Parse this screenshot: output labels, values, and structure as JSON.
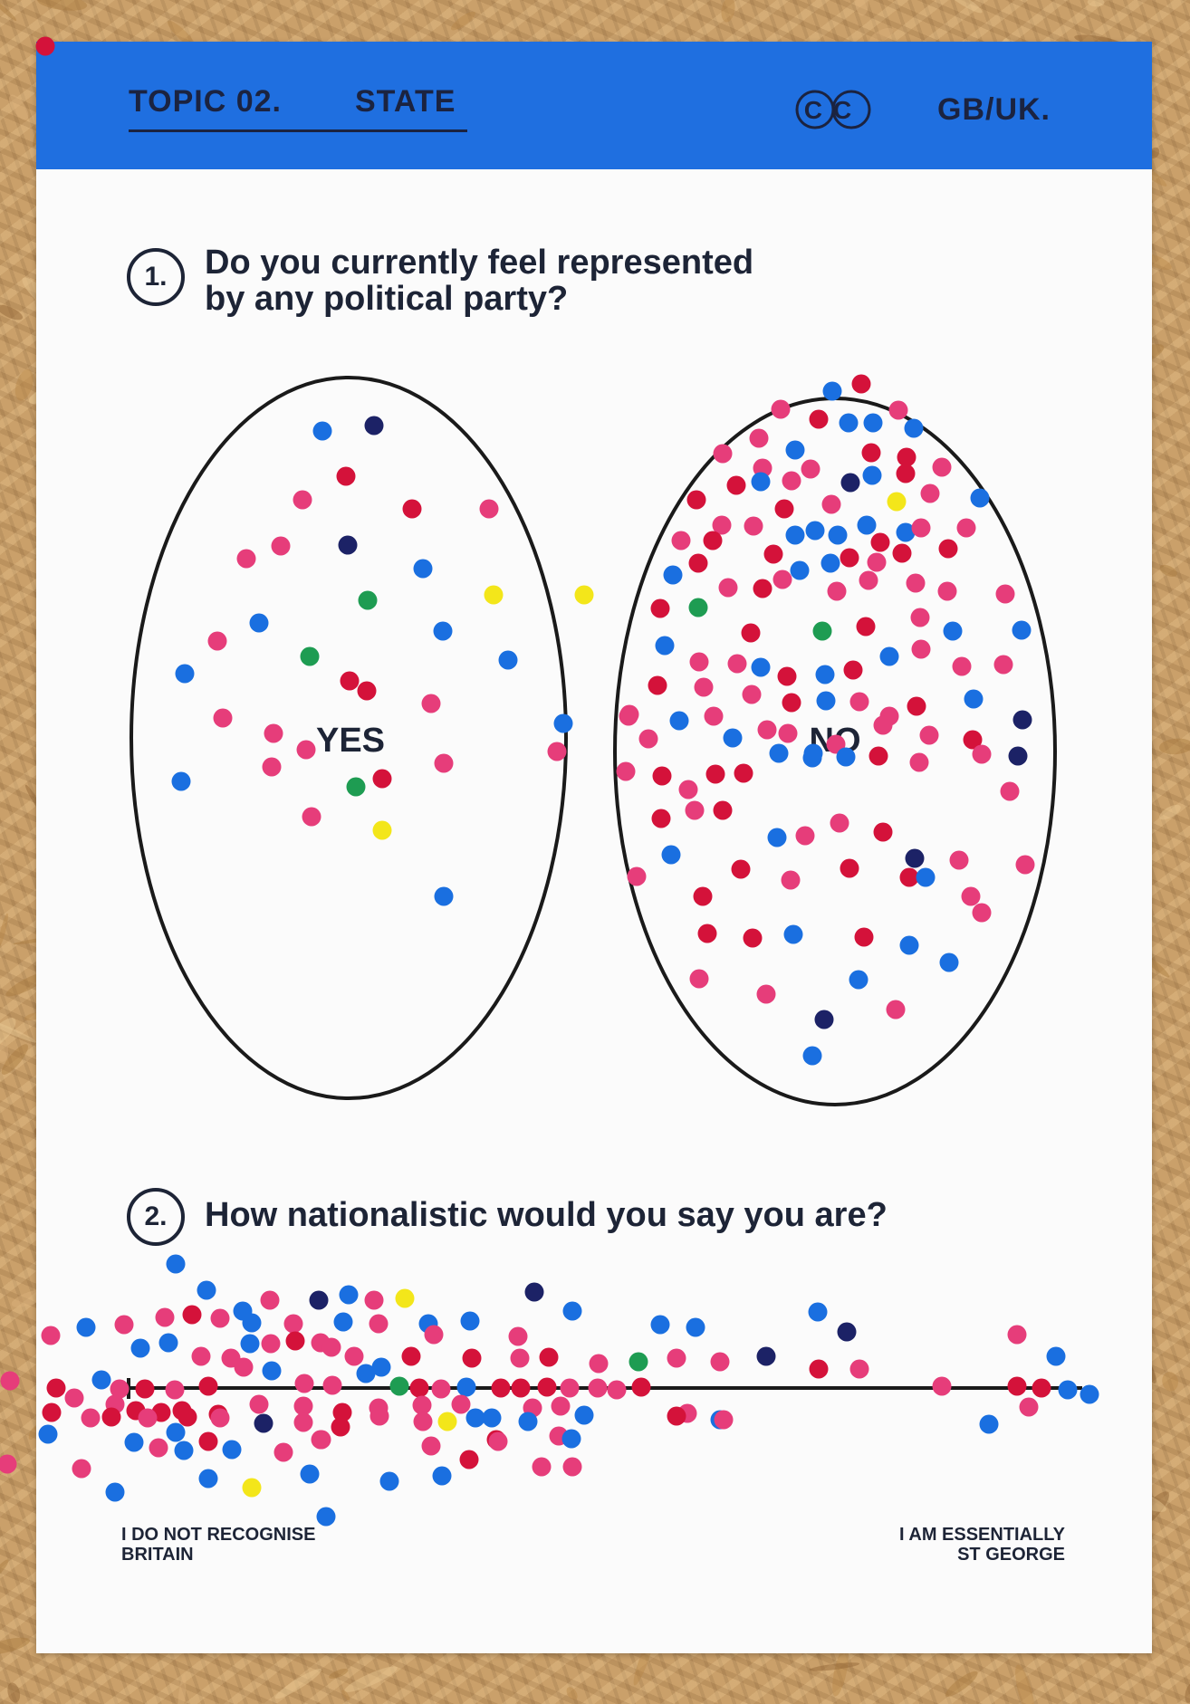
{
  "header": {
    "topic_label": "TOPIC 02.",
    "topic_name": "STATE",
    "cc_badge": "CC",
    "region": "GB/UK.",
    "band_color": "#1f6fe0"
  },
  "question_1": {
    "number": "1.",
    "text": "Do you currently feel represented\nby any political party?",
    "options": [
      {
        "label": "YES",
        "dots": {
          "pink": 14,
          "red": 7,
          "blue": 8,
          "navy": 2,
          "green": 3,
          "yellow": 2
        }
      },
      {
        "label": "NO",
        "dots": {
          "pink": 78,
          "red": 35,
          "blue": 52,
          "navy": 8,
          "green": 2,
          "yellow": 1
        }
      }
    ]
  },
  "question_2": {
    "number": "2.",
    "text": "How nationalistic would you say you are?",
    "scale_left": "I DO NOT RECOGNISE\nBRITAIN",
    "scale_right": "I AM ESSENTIALLY\nST GEORGE"
  },
  "dot_colors": {
    "pink": "#e63d7a",
    "red": "#d4123a",
    "blue": "#1a6fe0",
    "navy": "#1c2266",
    "green": "#1e9c52",
    "yellow": "#f3e61a"
  }
}
